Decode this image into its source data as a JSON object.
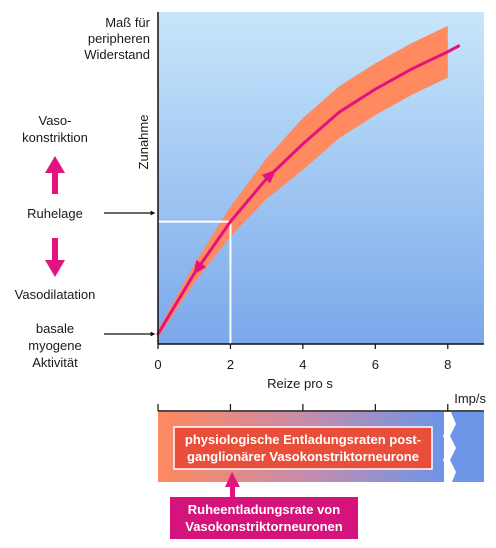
{
  "chart_data": {
    "type": "line",
    "ylabel": [
      "Maß für",
      "peripheren",
      "Widerstand"
    ],
    "ylabel_secondary": "Zunahme",
    "xlabel": "Reize pro s",
    "xlim": [
      0,
      9
    ],
    "xticks": [
      0,
      2,
      4,
      6,
      8
    ],
    "x_unit_label": "Imp/s",
    "series": [
      {
        "x": [
          0,
          1,
          2,
          3,
          4,
          5,
          6,
          7,
          8,
          8.3
        ],
        "y": [
          0,
          0.21,
          0.39,
          0.54,
          0.66,
          0.77,
          0.85,
          0.92,
          0.98,
          1.0
        ]
      }
    ],
    "band_half_width": 0.09,
    "reference": {
      "x": 2,
      "y": 0.39
    },
    "left_annotations": {
      "top": [
        "Vaso-",
        "konstriktion"
      ],
      "middle": "Ruhelage",
      "lower": "Vasodilatation",
      "bottom": [
        "basale",
        "myogene",
        "Aktivität"
      ]
    },
    "bar_label": [
      "physiologische Entladungsraten post-",
      "ganglionärer Vasokonstriktorneurone"
    ],
    "callout_label": [
      "Ruheentladungsrate von",
      "Vasokonstriktorneuronen"
    ],
    "colors": {
      "band": "#ff8a60",
      "curve": "#e2137e",
      "arrow": "#e2137e",
      "plot_bg_top": "#c8e6fb",
      "plot_bg_bottom": "#7aa8ea",
      "bar_orange": "#ff8a60",
      "bar_blue": "#6d95e8",
      "label_box": "#e84e3a",
      "callout_box": "#d4147b"
    }
  }
}
